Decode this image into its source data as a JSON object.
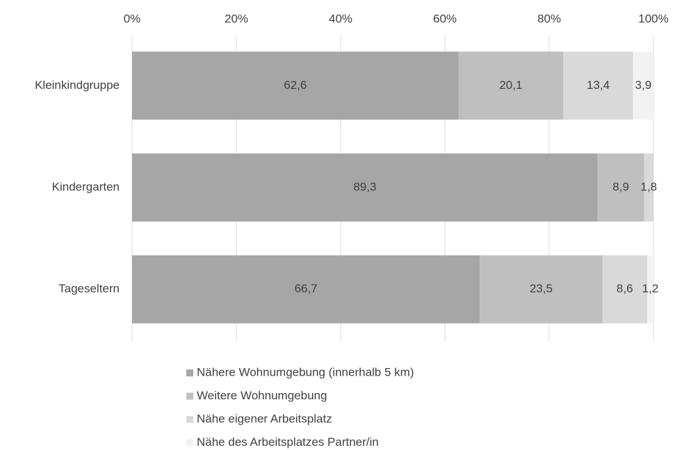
{
  "chart_data": {
    "type": "stacked-bar-horizontal",
    "categories": [
      "Kleinkindgruppe",
      "Kindergarten",
      "Tageseltern"
    ],
    "series": [
      {
        "name": "Nähere Wohnumgebung (innerhalb 5 km)",
        "color": "#a6a6a6",
        "values": [
          62.6,
          89.3,
          66.7
        ],
        "value_labels": [
          "62,6",
          "89,3",
          "66,7"
        ]
      },
      {
        "name": "Weitere Wohnumgebung",
        "color": "#bfbfbf",
        "values": [
          20.1,
          8.9,
          23.5
        ],
        "value_labels": [
          "20,1",
          "8,9",
          "23,5"
        ]
      },
      {
        "name": "Nähe eigener Arbeitsplatz",
        "color": "#d9d9d9",
        "values": [
          13.4,
          1.8,
          8.6
        ],
        "value_labels": [
          "13,4",
          "1,8",
          "8,6"
        ]
      },
      {
        "name": "Nähe des Arbeitsplatzes Partner/in",
        "color": "#f2f2f2",
        "values": [
          3.9,
          0,
          1.2
        ],
        "value_labels": [
          "3,9",
          null,
          "1,2"
        ]
      }
    ],
    "xlim": [
      0,
      100
    ],
    "xticks": [
      {
        "value": 0,
        "label": "0%"
      },
      {
        "value": 20,
        "label": "20%"
      },
      {
        "value": 40,
        "label": "40%"
      },
      {
        "value": 60,
        "label": "60%"
      },
      {
        "value": 80,
        "label": "80%"
      },
      {
        "value": 100,
        "label": "100%"
      }
    ],
    "grid": true,
    "legend": "bottom"
  }
}
